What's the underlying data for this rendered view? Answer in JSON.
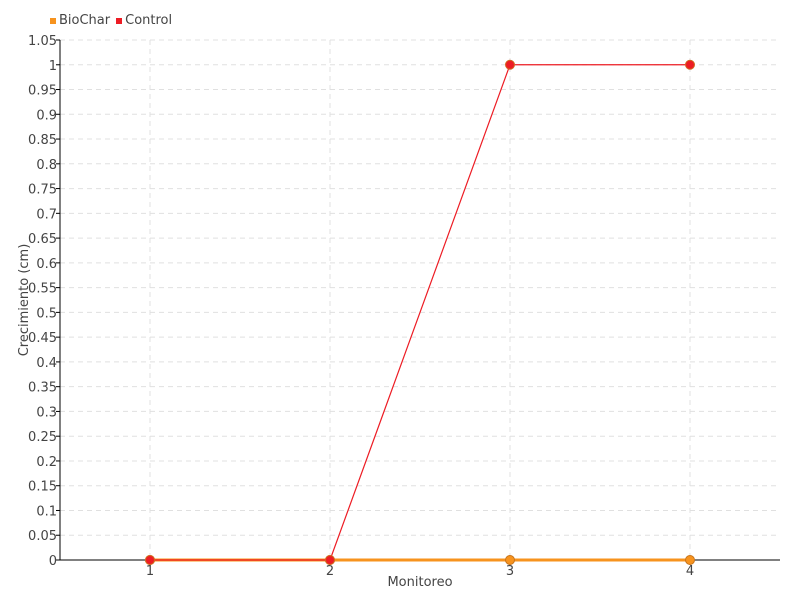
{
  "chart_data": {
    "type": "line",
    "title": "",
    "xlabel": "Monitoreo",
    "ylabel": "Crecimiento (cm)",
    "categories": [
      "1",
      "2",
      "3",
      "4"
    ],
    "ylim": [
      0,
      1.05
    ],
    "ytick_step": 0.05,
    "yticks": [
      "0",
      "0.05",
      "0.1",
      "0.15",
      "0.2",
      "0.25",
      "0.3",
      "0.35",
      "0.4",
      "0.45",
      "0.5",
      "0.55",
      "0.6",
      "0.65",
      "0.7",
      "0.75",
      "0.8",
      "0.85",
      "0.9",
      "0.95",
      "1",
      "1.05"
    ],
    "grid": true,
    "legend_position": "top-left",
    "series": [
      {
        "name": "BioChar",
        "color": "#f7931e",
        "values": [
          0,
          0,
          0,
          0
        ]
      },
      {
        "name": "Control",
        "color": "#ed1c24",
        "values": [
          0,
          0,
          1,
          1
        ]
      }
    ]
  }
}
